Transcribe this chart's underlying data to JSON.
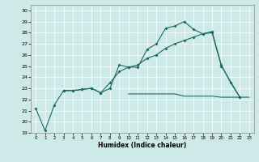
{
  "title": "",
  "xlabel": "Humidex (Indice chaleur)",
  "xlim": [
    -0.5,
    23.5
  ],
  "ylim": [
    19,
    30.5
  ],
  "yticks": [
    19,
    20,
    21,
    22,
    23,
    24,
    25,
    26,
    27,
    28,
    29,
    30
  ],
  "xticks": [
    0,
    1,
    2,
    3,
    4,
    5,
    6,
    7,
    8,
    9,
    10,
    11,
    12,
    13,
    14,
    15,
    16,
    17,
    18,
    19,
    20,
    21,
    22,
    23
  ],
  "background_color": "#cdeae8",
  "grid_color": "#ffffff",
  "line_color": "#1a6b5e",
  "line1_x": [
    0,
    1,
    2,
    3,
    4,
    5,
    6,
    7,
    8,
    9,
    10,
    11,
    12,
    13,
    14,
    15,
    16,
    17,
    18,
    19,
    20,
    21,
    22
  ],
  "line1_y": [
    21.2,
    19.2,
    21.5,
    22.8,
    22.8,
    22.9,
    23.0,
    22.6,
    23.0,
    25.1,
    24.9,
    24.9,
    26.5,
    27.0,
    28.4,
    28.6,
    29.0,
    28.3,
    27.9,
    28.1,
    25.1,
    23.5,
    22.2
  ],
  "line2_x": [
    3,
    4,
    5,
    6,
    7,
    8,
    9,
    10,
    11,
    12,
    13,
    14,
    15,
    16,
    17,
    18,
    19,
    20,
    22
  ],
  "line2_y": [
    22.8,
    22.8,
    22.9,
    23.0,
    22.6,
    23.5,
    24.5,
    24.9,
    25.1,
    25.7,
    26.0,
    26.6,
    27.0,
    27.3,
    27.6,
    27.9,
    28.0,
    25.0,
    22.2
  ],
  "line3_x": [
    10,
    11,
    12,
    13,
    14,
    15,
    16,
    17,
    18,
    19,
    20,
    21,
    22,
    23
  ],
  "line3_y": [
    22.5,
    22.5,
    22.5,
    22.5,
    22.5,
    22.5,
    22.3,
    22.3,
    22.3,
    22.3,
    22.2,
    22.2,
    22.2,
    22.2
  ]
}
